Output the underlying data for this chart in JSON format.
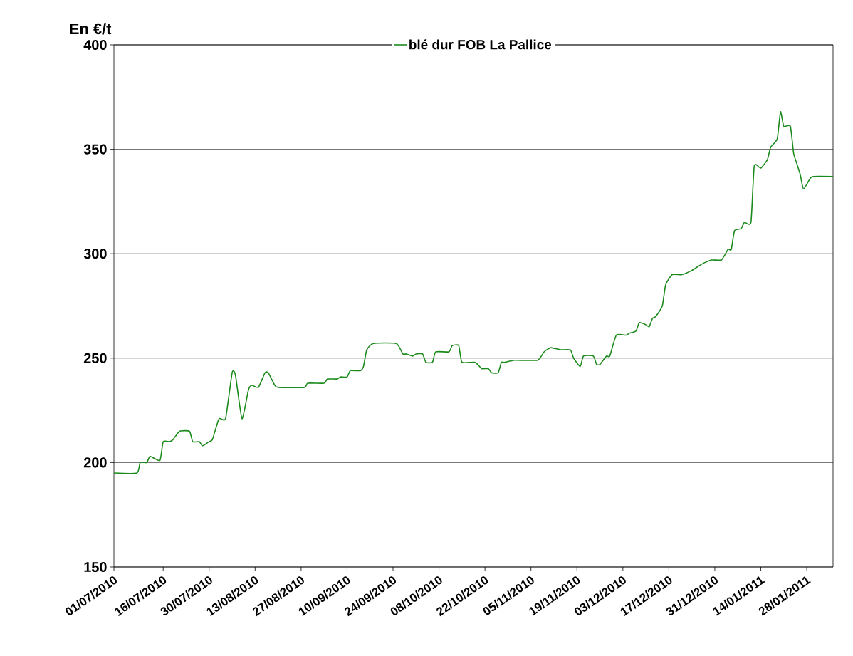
{
  "chart_data": {
    "type": "line",
    "ylabel": "En €/t",
    "x": [
      "2010-07-01",
      "2010-07-08",
      "2010-07-09",
      "2010-07-11",
      "2010-07-12",
      "2010-07-15",
      "2010-07-16",
      "2010-07-18",
      "2010-07-19",
      "2010-07-21",
      "2010-07-24",
      "2010-07-25",
      "2010-07-27",
      "2010-07-28",
      "2010-07-30",
      "2010-07-31",
      "2010-08-02",
      "2010-08-04",
      "2010-08-06",
      "2010-08-07",
      "2010-08-09",
      "2010-08-11",
      "2010-08-12",
      "2010-08-14",
      "2010-08-16",
      "2010-08-17",
      "2010-08-19",
      "2010-08-20",
      "2010-08-28",
      "2010-08-29",
      "2010-09-03",
      "2010-09-04",
      "2010-09-07",
      "2010-09-08",
      "2010-09-10",
      "2010-09-11",
      "2010-09-14",
      "2010-09-15",
      "2010-09-16",
      "2010-09-18",
      "2010-09-25",
      "2010-09-27",
      "2010-09-28",
      "2010-09-30",
      "2010-10-01",
      "2010-10-03",
      "2010-10-04",
      "2010-10-06",
      "2010-10-07",
      "2010-10-11",
      "2010-10-12",
      "2010-10-14",
      "2010-10-15",
      "2010-10-19",
      "2010-10-21",
      "2010-10-23",
      "2010-10-24",
      "2010-10-26",
      "2010-10-27",
      "2010-10-28",
      "2010-10-31",
      "2010-11-07",
      "2010-11-09",
      "2010-11-11",
      "2010-11-14",
      "2010-11-17",
      "2010-11-18",
      "2010-11-20",
      "2010-11-21",
      "2010-11-24",
      "2010-11-25",
      "2010-11-26",
      "2010-11-28",
      "2010-11-29",
      "2010-12-01",
      "2010-12-04",
      "2010-12-05",
      "2010-12-07",
      "2010-12-08",
      "2010-12-10",
      "2010-12-11",
      "2010-12-12",
      "2010-12-13",
      "2010-12-15",
      "2010-12-16",
      "2010-12-18",
      "2010-12-21",
      "2010-12-24",
      "2010-12-27",
      "2010-12-30",
      "2011-01-02",
      "2011-01-04",
      "2011-01-05",
      "2011-01-06",
      "2011-01-08",
      "2011-01-09",
      "2011-01-11",
      "2011-01-12",
      "2011-01-14",
      "2011-01-16",
      "2011-01-17",
      "2011-01-19",
      "2011-01-20",
      "2011-01-21",
      "2011-01-23",
      "2011-01-24",
      "2011-01-25",
      "2011-01-26",
      "2011-01-27",
      "2011-01-29",
      "2011-01-30",
      "2011-02-05"
    ],
    "series": [
      {
        "name": "blé dur FOB La Pallice",
        "color": "#1a8a1a",
        "values": [
          195,
          195,
          200,
          200,
          203,
          201,
          210,
          210,
          211,
          215,
          215,
          210,
          210,
          208,
          210,
          211,
          221,
          221,
          243,
          242,
          221,
          235,
          237,
          236,
          243,
          243,
          237,
          236,
          236,
          238,
          238,
          240,
          240,
          241,
          241,
          244,
          244,
          246,
          254,
          257,
          257,
          252,
          252,
          251,
          252,
          252,
          248,
          248,
          253,
          253,
          256,
          256,
          248,
          248,
          245,
          245,
          243,
          243,
          248,
          248,
          249,
          249,
          253,
          255,
          254,
          254,
          250,
          246,
          251,
          251,
          247,
          247,
          251,
          251,
          261,
          261,
          262,
          263,
          267,
          266,
          265,
          269,
          270,
          275,
          285,
          290,
          290,
          292,
          295,
          297,
          297,
          302,
          302,
          311,
          312,
          315,
          315,
          342,
          341,
          345,
          351,
          355,
          368,
          361,
          361,
          348,
          343,
          338,
          331,
          336,
          337,
          337
        ]
      }
    ],
    "xlim": [
      "2010-07-01",
      "2011-02-05"
    ],
    "xticks": [
      {
        "value": "2010-07-01",
        "label": "01/07/2010"
      },
      {
        "value": "2010-07-16",
        "label": "16/07/2010"
      },
      {
        "value": "2010-07-30",
        "label": "30/07/2010"
      },
      {
        "value": "2010-08-13",
        "label": "13/08/2010"
      },
      {
        "value": "2010-08-27",
        "label": "27/08/2010"
      },
      {
        "value": "2010-09-10",
        "label": "10/09/2010"
      },
      {
        "value": "2010-09-24",
        "label": "24/09/2010"
      },
      {
        "value": "2010-10-08",
        "label": "08/10/2010"
      },
      {
        "value": "2010-10-22",
        "label": "22/10/2010"
      },
      {
        "value": "2010-11-05",
        "label": "05/11/2010"
      },
      {
        "value": "2010-11-19",
        "label": "19/11/2010"
      },
      {
        "value": "2010-12-03",
        "label": "03/12/2010"
      },
      {
        "value": "2010-12-17",
        "label": "17/12/2010"
      },
      {
        "value": "2010-12-31",
        "label": "31/12/2010"
      },
      {
        "value": "2011-01-14",
        "label": "14/01/2011"
      },
      {
        "value": "2011-01-28",
        "label": "28/01/2011"
      }
    ],
    "ylim": [
      150,
      400
    ],
    "yticks": [
      150,
      200,
      250,
      300,
      350,
      400
    ],
    "grid": "y",
    "legend": "top"
  }
}
